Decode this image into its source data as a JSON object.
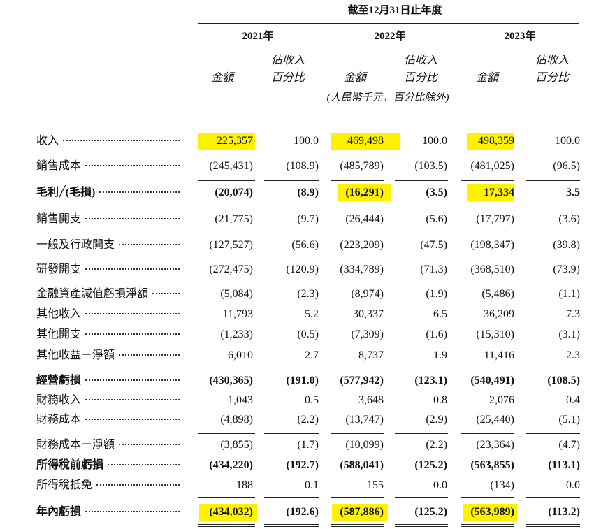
{
  "table": {
    "period": "截至12月31日止年度",
    "years": [
      "2021年",
      "2022年",
      "2023年"
    ],
    "amount_heading": "金額",
    "pct_heading": [
      "佔收入",
      "百分比"
    ],
    "unit_note": "(人民幣千元，百分比除外)",
    "rows": [
      {
        "label": "收入",
        "values": [
          "225,357",
          "100.0",
          "469,498",
          "100.0",
          "498,359",
          "100.0"
        ]
      },
      {
        "label": "銷售成本",
        "values": [
          "(245,431)",
          "(108.9)",
          "(485,789)",
          "(103.5)",
          "(481,025)",
          "(96.5)"
        ]
      },
      {
        "label": "毛利╱(毛損)",
        "bold": true,
        "values": [
          "(20,074)",
          "(8.9)",
          "(16,291)",
          "(3.5)",
          "17,334",
          "3.5"
        ]
      },
      {
        "label": "銷售開支",
        "values": [
          "(21,775)",
          "(9.7)",
          "(26,444)",
          "(5.6)",
          "(17,797)",
          "(3.6)"
        ]
      },
      {
        "label": "一般及行政開支",
        "values": [
          "(127,527)",
          "(56.6)",
          "(223,209)",
          "(47.5)",
          "(198,347)",
          "(39.8)"
        ]
      },
      {
        "label": "研發開支",
        "values": [
          "(272,475)",
          "(120.9)",
          "(334,789)",
          "(71.3)",
          "(368,510)",
          "(73.9)"
        ]
      },
      {
        "label": "金融資產減值虧損淨額",
        "values": [
          "(5,084)",
          "(2.3)",
          "(8,974)",
          "(1.9)",
          "(5,486)",
          "(1.1)"
        ]
      },
      {
        "label": "其他收入",
        "values": [
          "11,793",
          "5.2",
          "30,337",
          "6.5",
          "36,209",
          "7.3"
        ]
      },
      {
        "label": "其他開支",
        "values": [
          "(1,233)",
          "(0.5)",
          "(7,309)",
          "(1.6)",
          "(15,310)",
          "(3.1)"
        ]
      },
      {
        "label": "其他收益－淨額",
        "values": [
          "6,010",
          "2.7",
          "8,737",
          "1.9",
          "11,416",
          "2.3"
        ]
      },
      {
        "label": "經營虧損",
        "bold": true,
        "values": [
          "(430,365)",
          "(191.0)",
          "(577,942)",
          "(123.1)",
          "(540,491)",
          "(108.5)"
        ]
      },
      {
        "label": "財務收入",
        "values": [
          "1,043",
          "0.5",
          "3,648",
          "0.8",
          "2,076",
          "0.4"
        ]
      },
      {
        "label": "財務成本",
        "values": [
          "(4,898)",
          "(2.2)",
          "(13,747)",
          "(2.9)",
          "(25,440)",
          "(5.1)"
        ]
      },
      {
        "label": "財務成本－淨額",
        "values": [
          "(3,855)",
          "(1.7)",
          "(10,099)",
          "(2.2)",
          "(23,364)",
          "(4.7)"
        ]
      },
      {
        "label": "所得稅前虧損",
        "bold": true,
        "values": [
          "(434,220)",
          "(192.7)",
          "(588,041)",
          "(125.2)",
          "(563,855)",
          "(113.1)"
        ]
      },
      {
        "label": "所得稅抵免",
        "values": [
          "188",
          "0.1",
          "155",
          "0.0",
          "(134)",
          "0.0"
        ]
      },
      {
        "label": "年內虧損",
        "bold": true,
        "values": [
          "(434,032)",
          "(192.6)",
          "(587,886)",
          "(125.2)",
          "(563,989)",
          "(113.2)"
        ]
      }
    ]
  }
}
